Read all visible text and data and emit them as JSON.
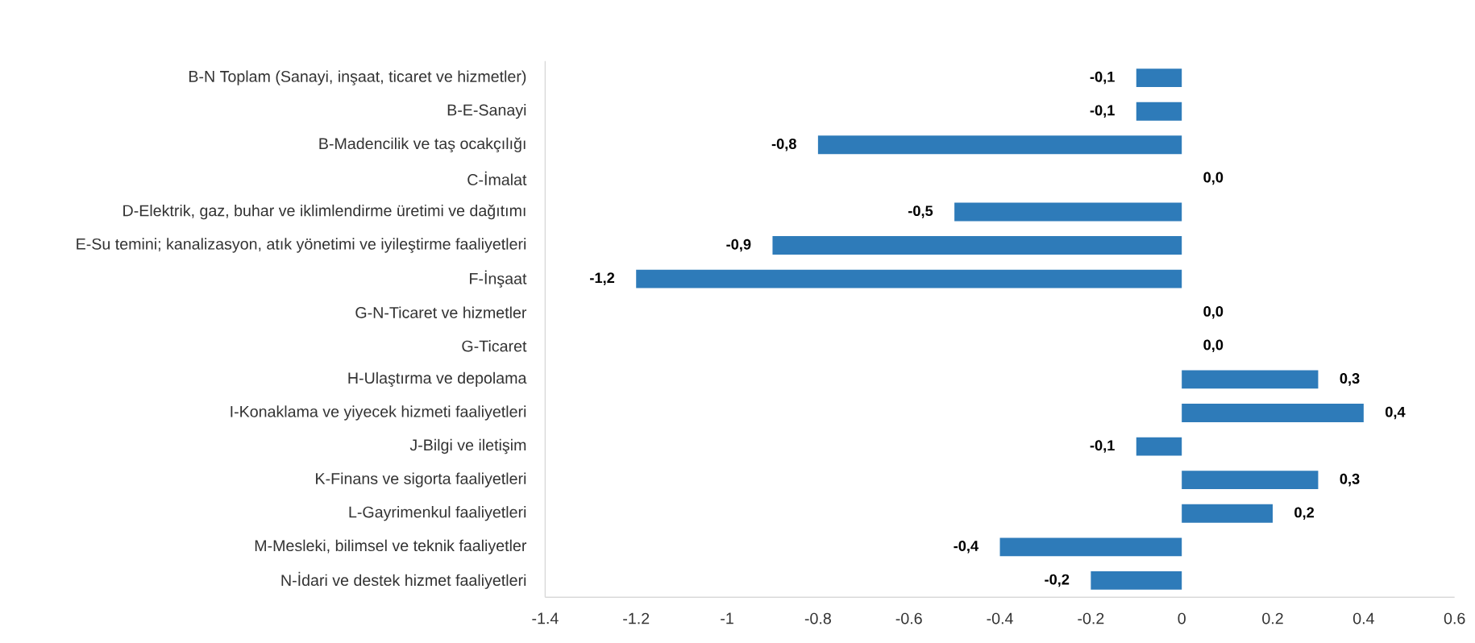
{
  "chart_data": {
    "type": "bar",
    "orientation": "horizontal",
    "color": "#2e7bb9",
    "categories": [
      "B-N Toplam (Sanayi, inşaat, ticaret ve hizmetler)",
      "B-E-Sanayi",
      "B-Madencilik ve taş ocakçılığı",
      "C-İmalat",
      "D-Elektrik, gaz, buhar ve iklimlendirme üretimi ve dağıtımı",
      "E-Su temini; kanalizasyon, atık yönetimi ve iyileştirme faaliyetleri",
      "F-İnşaat",
      "G-N-Ticaret ve hizmetler",
      "G-Ticaret",
      "H-Ulaştırma ve depolama",
      "I-Konaklama ve yiyecek hizmeti faaliyetleri",
      "J-Bilgi ve iletişim",
      "K-Finans ve sigorta faaliyetleri",
      "L-Gayrimenkul faaliyetleri",
      "M-Mesleki, bilimsel ve teknik faaliyetler",
      "N-İdari ve destek hizmet faaliyetleri"
    ],
    "values": [
      -0.1,
      -0.1,
      -0.8,
      0.0,
      -0.5,
      -0.9,
      -1.2,
      0.0,
      0.0,
      0.3,
      0.4,
      -0.1,
      0.3,
      0.2,
      -0.4,
      -0.2
    ],
    "value_labels": [
      "-0,1",
      "-0,1",
      "-0,8",
      "0,0",
      "-0,5",
      "-0,9",
      "-1,2",
      "0,0",
      "0,0",
      "0,3",
      "0,4",
      "-0,1",
      "0,3",
      "0,2",
      "-0,4",
      "-0,2"
    ],
    "xlim": [
      -1.4,
      0.6
    ],
    "xticks": [
      -1.4,
      -1.2,
      -1,
      -0.8,
      -0.6,
      -0.4,
      -0.2,
      0,
      0.2,
      0.4,
      0.6
    ]
  }
}
